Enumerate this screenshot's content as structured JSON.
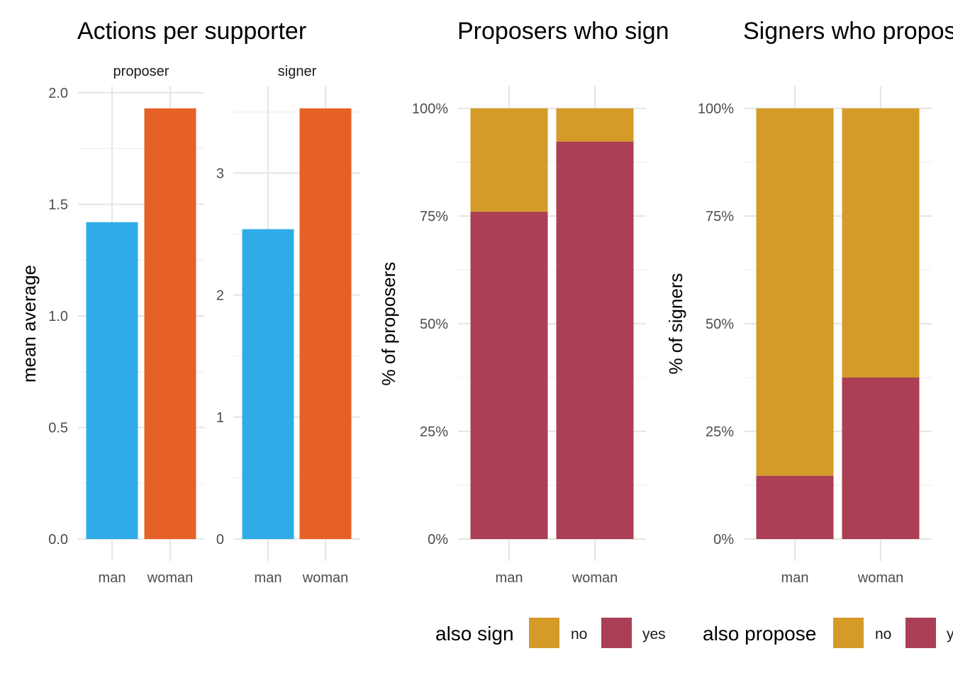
{
  "colors": {
    "man": "#2FACE8",
    "woman": "#E66127",
    "no": "#D49B28",
    "yes": "#AA3F55"
  },
  "chart_data": [
    {
      "type": "bar",
      "title": "Actions per supporter",
      "ylabel": "mean average",
      "facets": [
        {
          "strip": "proposer",
          "categories": [
            "man",
            "woman"
          ],
          "values": [
            1.42,
            1.93
          ],
          "ylim": [
            0,
            1.93
          ],
          "yticks": [
            "0.0",
            "0.5",
            "1.0",
            "1.5",
            "2.0"
          ],
          "ytick_values": [
            0,
            0.5,
            1.0,
            1.5,
            2.0
          ]
        },
        {
          "strip": "signer",
          "categories": [
            "man",
            "woman"
          ],
          "values": [
            2.54,
            3.53
          ],
          "ylim": [
            0,
            3.53
          ],
          "yticks": [
            "0",
            "1",
            "2",
            "3"
          ],
          "ytick_values": [
            0,
            1,
            2,
            3
          ]
        }
      ]
    },
    {
      "type": "bar",
      "stacked": true,
      "title": "Proposers who sign",
      "ylabel": "% of proposers",
      "categories": [
        "man",
        "woman"
      ],
      "yticks": [
        "0%",
        "25%",
        "50%",
        "75%",
        "100%"
      ],
      "ytick_values": [
        0,
        25,
        50,
        75,
        100
      ],
      "ylim": [
        0,
        100
      ],
      "series": [
        {
          "name": "yes",
          "values": [
            76,
            92.3
          ]
        },
        {
          "name": "no",
          "values": [
            24,
            7.7
          ]
        }
      ],
      "legend": {
        "title": "also sign",
        "entries": [
          "no",
          "yes"
        ],
        "position": "bottom"
      }
    },
    {
      "type": "bar",
      "stacked": true,
      "title": "Signers who propose",
      "ylabel": "% of signers",
      "categories": [
        "man",
        "woman"
      ],
      "yticks": [
        "0%",
        "25%",
        "50%",
        "75%",
        "100%"
      ],
      "ytick_values": [
        0,
        25,
        50,
        75,
        100
      ],
      "ylim": [
        0,
        100
      ],
      "series": [
        {
          "name": "yes",
          "values": [
            14.7,
            37.5
          ]
        },
        {
          "name": "no",
          "values": [
            85.3,
            62.5
          ]
        }
      ],
      "legend": {
        "title": "also propose",
        "entries": [
          "no",
          "yes"
        ],
        "position": "bottom"
      }
    }
  ]
}
